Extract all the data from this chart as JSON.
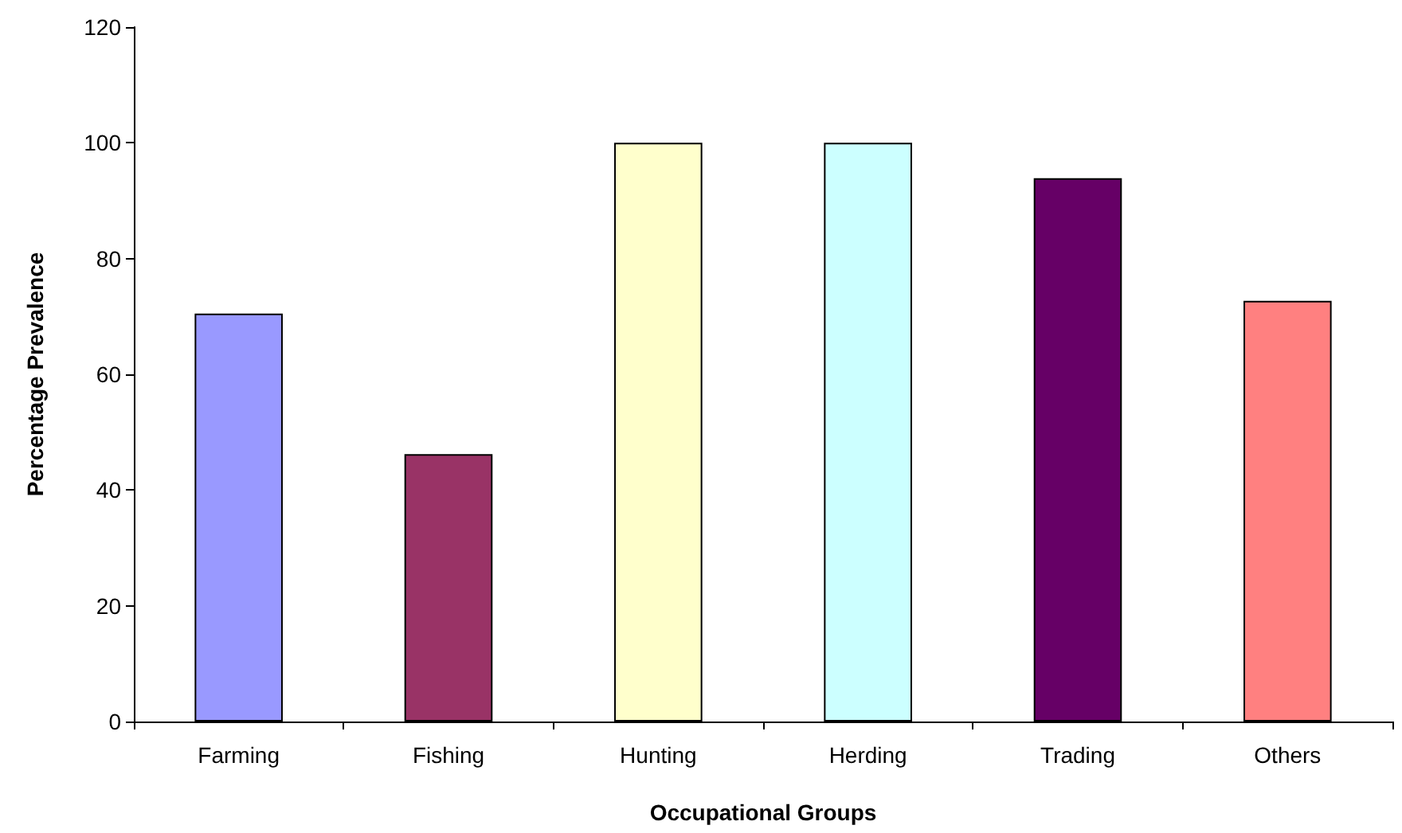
{
  "chart_data": {
    "type": "bar",
    "xlabel": "Occupational Groups",
    "ylabel": "Percentage Prevalence",
    "categories": [
      "Farming",
      "Fishing",
      "Hunting",
      "Herding",
      "Trading",
      "Others"
    ],
    "values": [
      70.5,
      46.2,
      100,
      100,
      93.9,
      72.7
    ],
    "colors": [
      "#9999ff",
      "#993366",
      "#ffffcc",
      "#ccffff",
      "#660066",
      "#ff8080"
    ],
    "ylim": [
      0,
      120
    ],
    "yticks": [
      0,
      20,
      40,
      60,
      80,
      100,
      120
    ],
    "grid": false
  }
}
